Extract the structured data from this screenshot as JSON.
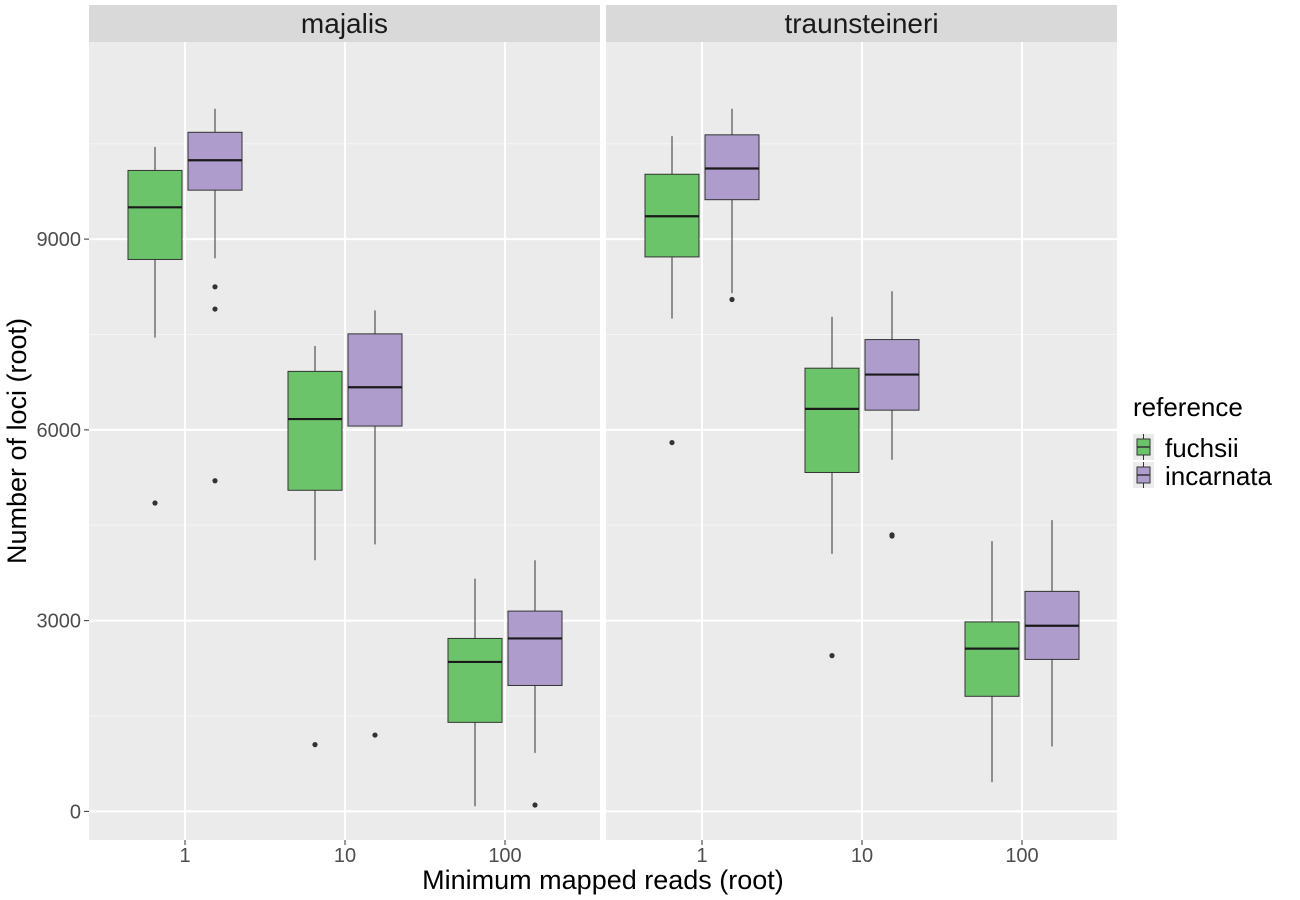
{
  "chart_data": {
    "type": "boxplot",
    "xlabel": "Minimum mapped reads (root)",
    "ylabel": "Number of loci (root)",
    "x_categories": [
      "1",
      "10",
      "100"
    ],
    "y_ticks": [
      0,
      3000,
      6000,
      9000
    ],
    "ylim": [
      -450,
      12100
    ],
    "grid": true,
    "legend": {
      "title": "reference",
      "position": "right",
      "items": [
        {
          "name": "fuchsii",
          "color": "#6cc46a"
        },
        {
          "name": "incarnata",
          "color": "#ae9ccd"
        }
      ]
    },
    "facets": [
      {
        "label": "majalis",
        "boxes": [
          {
            "x": "1",
            "reference": "fuchsii",
            "min": 7450,
            "q1": 8680,
            "median": 9500,
            "q3": 10080,
            "max": 10450,
            "outliers": [
              4850
            ]
          },
          {
            "x": "1",
            "reference": "incarnata",
            "min": 8700,
            "q1": 9770,
            "median": 10240,
            "q3": 10680,
            "max": 11050,
            "outliers": [
              8250,
              7900,
              5200
            ]
          },
          {
            "x": "10",
            "reference": "fuchsii",
            "min": 3950,
            "q1": 5050,
            "median": 6170,
            "q3": 6920,
            "max": 7320,
            "outliers": [
              1050
            ]
          },
          {
            "x": "10",
            "reference": "incarnata",
            "min": 4200,
            "q1": 6060,
            "median": 6670,
            "q3": 7510,
            "max": 7880,
            "outliers": [
              1200
            ]
          },
          {
            "x": "100",
            "reference": "fuchsii",
            "min": 80,
            "q1": 1400,
            "median": 2350,
            "q3": 2720,
            "max": 3660,
            "outliers": []
          },
          {
            "x": "100",
            "reference": "incarnata",
            "min": 920,
            "q1": 1980,
            "median": 2720,
            "q3": 3150,
            "max": 3950,
            "outliers": [
              100
            ]
          }
        ]
      },
      {
        "label": "traunsteineri",
        "boxes": [
          {
            "x": "1",
            "reference": "fuchsii",
            "min": 7750,
            "q1": 8720,
            "median": 9360,
            "q3": 10020,
            "max": 10620,
            "outliers": [
              5800
            ]
          },
          {
            "x": "1",
            "reference": "incarnata",
            "min": 8150,
            "q1": 9620,
            "median": 10110,
            "q3": 10640,
            "max": 11050,
            "outliers": [
              8050
            ]
          },
          {
            "x": "10",
            "reference": "fuchsii",
            "min": 4050,
            "q1": 5330,
            "median": 6330,
            "q3": 6970,
            "max": 7780,
            "outliers": [
              2450
            ]
          },
          {
            "x": "10",
            "reference": "incarnata",
            "min": 5530,
            "q1": 6310,
            "median": 6870,
            "q3": 7420,
            "max": 8180,
            "outliers": [
              4350,
              4330
            ]
          },
          {
            "x": "100",
            "reference": "fuchsii",
            "min": 460,
            "q1": 1810,
            "median": 2560,
            "q3": 2980,
            "max": 4250,
            "outliers": []
          },
          {
            "x": "100",
            "reference": "incarnata",
            "min": 1020,
            "q1": 2390,
            "median": 2920,
            "q3": 3460,
            "max": 4580,
            "outliers": []
          }
        ]
      }
    ]
  }
}
